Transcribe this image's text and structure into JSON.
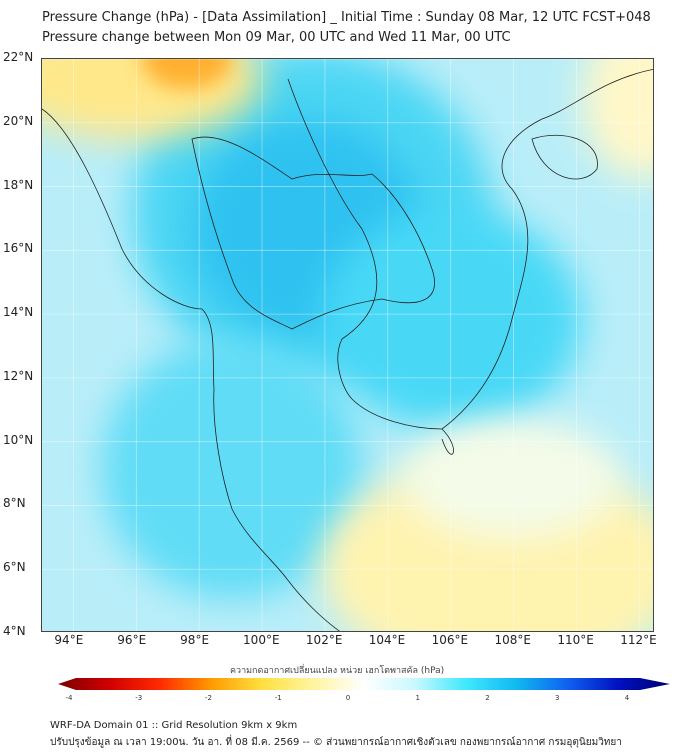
{
  "title": {
    "line1": "Pressure Change (hPa) - [Data Assimilation] _ Initial Time : Sunday 08 Mar, 12 UTC FCST+048",
    "line2": "Pressure change between Mon 09 Mar, 00 UTC and Wed 11 Mar, 00 UTC"
  },
  "map": {
    "lat_labels": [
      "22°N",
      "20°N",
      "18°N",
      "16°N",
      "14°N",
      "12°N",
      "10°N",
      "8°N",
      "6°N",
      "4°N"
    ],
    "lat_values": [
      22,
      20,
      18,
      16,
      14,
      12,
      10,
      8,
      6,
      4
    ],
    "lon_labels": [
      "94°E",
      "96°E",
      "98°E",
      "100°E",
      "102°E",
      "104°E",
      "106°E",
      "108°E",
      "110°E",
      "112°E"
    ],
    "lon_values": [
      94,
      96,
      98,
      100,
      102,
      104,
      106,
      108,
      110,
      112
    ],
    "extent": {
      "lon": [
        93,
        112.5
      ],
      "lat": [
        4,
        22
      ]
    }
  },
  "colorbar": {
    "label": "ความกดอากาศเปลี่ยนแปลง หน่วย เฮกโตพาสคัล (hPa)",
    "range": [
      -4,
      4
    ],
    "ticks": [
      "-4",
      "-3",
      "-2",
      "-1",
      "0",
      "1",
      "2",
      "3",
      "4"
    ],
    "tick_values": [
      -4,
      -3,
      -2,
      -1,
      0,
      1,
      2,
      3,
      4
    ],
    "colors": [
      "#7a0000",
      "#d00000",
      "#ff2a00",
      "#ff9a00",
      "#ffe040",
      "#fff4a0",
      "#ffffff",
      "#c8f8ff",
      "#40e8ff",
      "#10b8f0",
      "#1060f0",
      "#0010c0",
      "#000070"
    ]
  },
  "footer": {
    "line1": "WRF-DA Domain 01 :: Grid Resolution 9km x 9km",
    "line2": "ปรับปรุงข้อมูล ณ เวลา 19:00น. วัน อา. ที่ 08 มี.ค. 2569 -- © ส่วนพยากรณ์อากาศเชิงตัวเลข กองพยากรณ์อากาศ กรมอุตุนิยมวิทยา"
  }
}
